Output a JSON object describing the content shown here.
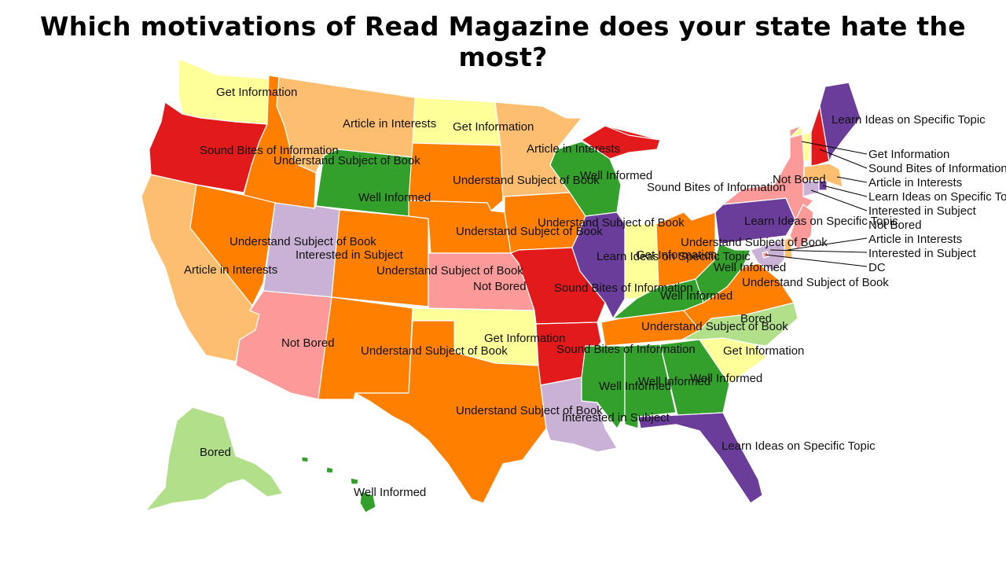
{
  "title": "Which motivations of Read Magazine does your state hate the most?",
  "colors": {
    "get_information": "#ffff99",
    "sound_bites": "#e31a1c",
    "article_interests": "#fdbf6f",
    "understand_book": "#ff7f00",
    "well_informed": "#33a02c",
    "interested_subject": "#cab2d6",
    "not_bored": "#fb9a99",
    "learn_ideas": "#6a3d9a",
    "bored": "#b2df8a"
  },
  "states": [
    {
      "id": "WA",
      "cat": "get_information",
      "label": "Get Information"
    },
    {
      "id": "OR",
      "cat": "sound_bites",
      "label": "Sound Bites of Information"
    },
    {
      "id": "CA",
      "cat": "article_interests",
      "label": "Article in Interests"
    },
    {
      "id": "ID",
      "cat": "understand_book",
      "label": "Understand Subject of Book"
    },
    {
      "id": "NV",
      "cat": "understand_book",
      "label": "Understand Subject of Book"
    },
    {
      "id": "MT",
      "cat": "article_interests",
      "label": "Article in Interests"
    },
    {
      "id": "WY",
      "cat": "well_informed",
      "label": "Well Informed"
    },
    {
      "id": "UT",
      "cat": "interested_subject",
      "label": "Interested in Subject"
    },
    {
      "id": "AZ",
      "cat": "not_bored",
      "label": "Not Bored"
    },
    {
      "id": "CO",
      "cat": "understand_book",
      "label": "Understand Subject of Book"
    },
    {
      "id": "NM",
      "cat": "understand_book",
      "label": "Understand Subject of Book"
    },
    {
      "id": "ND",
      "cat": "get_information",
      "label": "Get Information"
    },
    {
      "id": "SD",
      "cat": "understand_book",
      "label": "Understand Subject of Book"
    },
    {
      "id": "NE",
      "cat": "understand_book",
      "label": "Understand Subject of Book"
    },
    {
      "id": "KS",
      "cat": "not_bored",
      "label": "Not Bored"
    },
    {
      "id": "OK",
      "cat": "get_information",
      "label": "Get Information"
    },
    {
      "id": "TX",
      "cat": "understand_book",
      "label": "Understand Subject of Book"
    },
    {
      "id": "MN",
      "cat": "article_interests",
      "label": "Article in Interests"
    },
    {
      "id": "IA",
      "cat": "understand_book",
      "label": "Understand Subject of Book"
    },
    {
      "id": "MO",
      "cat": "sound_bites",
      "label": "Sound Bites of Information"
    },
    {
      "id": "AR",
      "cat": "sound_bites",
      "label": "Sound Bites of Information"
    },
    {
      "id": "LA",
      "cat": "interested_subject",
      "label": "Interested in Subject"
    },
    {
      "id": "WI",
      "cat": "well_informed",
      "label": "Well Informed"
    },
    {
      "id": "IL",
      "cat": "learn_ideas",
      "label": "Learn Ideas on Specific Topic"
    },
    {
      "id": "MI",
      "cat": "sound_bites",
      "label": "Sound Bites of Information"
    },
    {
      "id": "IN",
      "cat": "get_information",
      "label": "Get Information"
    },
    {
      "id": "OH",
      "cat": "understand_book",
      "label": "Understand Subject of Book"
    },
    {
      "id": "KY",
      "cat": "well_informed",
      "label": "Well Informed"
    },
    {
      "id": "TN",
      "cat": "understand_book",
      "label": "Understand Subject of Book"
    },
    {
      "id": "MS",
      "cat": "well_informed",
      "label": "Well Informed"
    },
    {
      "id": "AL",
      "cat": "well_informed",
      "label": "Well Informed"
    },
    {
      "id": "GA",
      "cat": "well_informed",
      "label": "Well Informed"
    },
    {
      "id": "FL",
      "cat": "learn_ideas",
      "label": "Learn Ideas on Specific Topic"
    },
    {
      "id": "SC",
      "cat": "get_information",
      "label": "Get Information"
    },
    {
      "id": "NC",
      "cat": "bored",
      "label": "Bored"
    },
    {
      "id": "VA",
      "cat": "understand_book",
      "label": "Understand Subject of Book"
    },
    {
      "id": "WV",
      "cat": "well_informed",
      "label": "Well Informed"
    },
    {
      "id": "PA",
      "cat": "learn_ideas",
      "label": "Learn Ideas on Specific Topic"
    },
    {
      "id": "NY",
      "cat": "not_bored",
      "label": "Not Bored"
    },
    {
      "id": "VT",
      "cat": "get_information",
      "label": "Get Information"
    },
    {
      "id": "NH",
      "cat": "sound_bites",
      "label": "Sound Bites of Information"
    },
    {
      "id": "ME",
      "cat": "learn_ideas",
      "label": "Learn Ideas on Specific Topic"
    },
    {
      "id": "MA",
      "cat": "article_interests",
      "label": "Article in Interests"
    },
    {
      "id": "RI",
      "cat": "learn_ideas",
      "label": "Learn Ideas on Specific Topic"
    },
    {
      "id": "CT",
      "cat": "interested_subject",
      "label": "Interested in Subject"
    },
    {
      "id": "NJ",
      "cat": "not_bored",
      "label": "Not Bored"
    },
    {
      "id": "DE",
      "cat": "article_interests",
      "label": "Article in Interests"
    },
    {
      "id": "MD",
      "cat": "interested_subject",
      "label": "Interested in Subject"
    },
    {
      "id": "DC",
      "cat": "not_bored",
      "label": "DC"
    },
    {
      "id": "AK",
      "cat": "bored",
      "label": "Bored"
    },
    {
      "id": "HI",
      "cat": "well_informed",
      "label": "Well Informed"
    }
  ]
}
